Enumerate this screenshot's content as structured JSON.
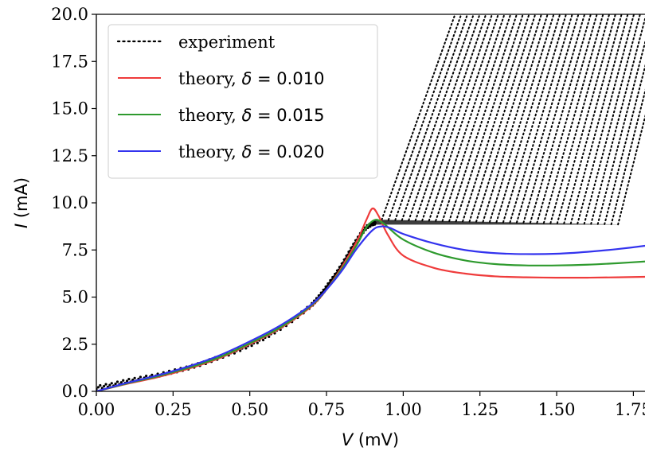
{
  "chart_data": {
    "type": "line",
    "title": "",
    "xlabel_var": "V",
    "xlabel_unit": " (mV)",
    "ylabel_var": "I",
    "ylabel_unit": " (mA)",
    "xlim": [
      0.0,
      1.88
    ],
    "ylim": [
      0.0,
      20.0
    ],
    "xticks": [
      "0.00",
      "0.25",
      "0.50",
      "0.75",
      "1.00",
      "1.25",
      "1.50",
      "1.75"
    ],
    "xtick_values": [
      0.0,
      0.25,
      0.5,
      0.75,
      1.0,
      1.25,
      1.5,
      1.75
    ],
    "yticks": [
      "0.0",
      "2.5",
      "5.0",
      "7.5",
      "10.0",
      "12.5",
      "15.0",
      "17.5",
      "20.0"
    ],
    "ytick_values": [
      0.0,
      2.5,
      5.0,
      7.5,
      10.0,
      12.5,
      15.0,
      17.5,
      20.0
    ],
    "grid": false,
    "legend_position": "top-left",
    "legend": [
      {
        "label": "experiment",
        "style": "dotted",
        "color": "#000000"
      },
      {
        "label_prefix": "theory, ",
        "delta_symbol": "δ",
        "label_value": " = 0.010",
        "style": "solid",
        "color": "#ef3b3b"
      },
      {
        "label_prefix": "theory, ",
        "delta_symbol": "δ",
        "label_value": " = 0.015",
        "style": "solid",
        "color": "#2e9a2e"
      },
      {
        "label_prefix": "theory, ",
        "delta_symbol": "δ",
        "label_value": " = 0.020",
        "style": "solid",
        "color": "#3333ee"
      }
    ],
    "series": [
      {
        "name": "theory, δ = 0.010",
        "color": "#ef3b3b",
        "x": [
          0.0,
          0.1,
          0.2,
          0.3,
          0.4,
          0.5,
          0.6,
          0.7,
          0.75,
          0.8,
          0.85,
          0.88,
          0.9,
          0.92,
          0.95,
          1.0,
          1.1,
          1.2,
          1.3,
          1.4,
          1.5,
          1.6,
          1.7,
          1.8,
          1.88
        ],
        "y": [
          0.0,
          0.4,
          0.75,
          1.2,
          1.75,
          2.5,
          3.35,
          4.5,
          5.4,
          6.6,
          8.0,
          9.1,
          9.7,
          9.3,
          8.3,
          7.2,
          6.55,
          6.25,
          6.1,
          6.05,
          6.03,
          6.03,
          6.05,
          6.08,
          6.1
        ]
      },
      {
        "name": "theory, δ = 0.015",
        "color": "#2e9a2e",
        "x": [
          0.0,
          0.1,
          0.2,
          0.3,
          0.4,
          0.5,
          0.6,
          0.7,
          0.75,
          0.8,
          0.85,
          0.88,
          0.91,
          0.94,
          1.0,
          1.1,
          1.2,
          1.3,
          1.4,
          1.5,
          1.6,
          1.7,
          1.8,
          1.88
        ],
        "y": [
          0.0,
          0.42,
          0.8,
          1.25,
          1.8,
          2.55,
          3.4,
          4.55,
          5.4,
          6.5,
          7.8,
          8.7,
          9.1,
          8.85,
          8.05,
          7.35,
          6.95,
          6.75,
          6.68,
          6.68,
          6.72,
          6.8,
          6.9,
          7.0
        ]
      },
      {
        "name": "theory, δ = 0.020",
        "color": "#3333ee",
        "x": [
          0.0,
          0.1,
          0.2,
          0.3,
          0.4,
          0.5,
          0.6,
          0.7,
          0.75,
          0.8,
          0.85,
          0.9,
          0.93,
          0.96,
          1.0,
          1.1,
          1.2,
          1.3,
          1.4,
          1.5,
          1.6,
          1.7,
          1.8,
          1.88
        ],
        "y": [
          0.0,
          0.45,
          0.85,
          1.32,
          1.9,
          2.65,
          3.5,
          4.6,
          5.4,
          6.4,
          7.6,
          8.55,
          8.75,
          8.65,
          8.35,
          7.85,
          7.5,
          7.33,
          7.28,
          7.3,
          7.4,
          7.55,
          7.75,
          7.95
        ]
      }
    ],
    "experiment": {
      "name": "experiment",
      "color": "#000000",
      "ohmic_branch": {
        "x": [
          0.0,
          0.05,
          0.1,
          0.15,
          0.2,
          0.25,
          0.3,
          0.35,
          0.4,
          0.45,
          0.5,
          0.55,
          0.6,
          0.65,
          0.7,
          0.72,
          0.74,
          0.76,
          0.78,
          0.8,
          0.82,
          0.84,
          0.86,
          0.88,
          0.9,
          0.91
        ],
        "y": [
          0.2,
          0.35,
          0.55,
          0.7,
          0.85,
          1.05,
          1.25,
          1.5,
          1.8,
          2.1,
          2.45,
          2.85,
          3.35,
          3.9,
          4.55,
          4.9,
          5.3,
          5.75,
          6.2,
          6.7,
          7.25,
          7.8,
          8.3,
          8.7,
          8.9,
          8.95
        ]
      },
      "switching_sweeps": {
        "count": 36,
        "plateau_y_start": 9.1,
        "plateau_y_end": 8.85,
        "knee_x_first": 0.93,
        "knee_x_last": 1.7,
        "end_x_first": 1.18,
        "end_x_last": 1.88,
        "top_y": 20.0
      }
    }
  }
}
